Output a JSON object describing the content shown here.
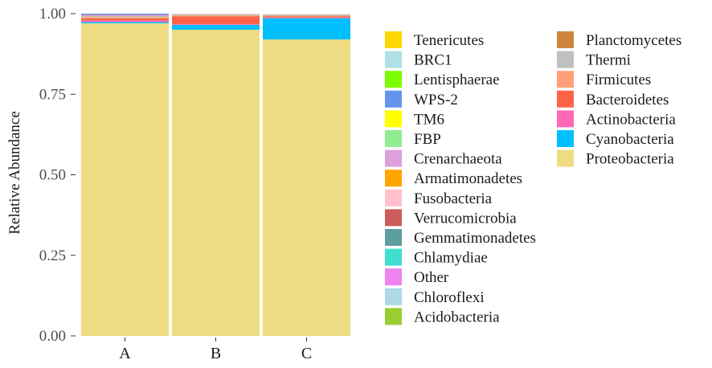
{
  "chart_data": {
    "type": "bar",
    "stacked": true,
    "title": "",
    "xlabel": "",
    "ylabel": "Relative Abundance",
    "ylim": [
      0,
      1
    ],
    "yticks": [
      "0.00",
      "0.25",
      "0.50",
      "0.75",
      "1.00"
    ],
    "ytick_values": [
      0,
      0.25,
      0.5,
      0.75,
      1
    ],
    "grid": false,
    "legend_position": "right",
    "categories": [
      "A",
      "B",
      "C"
    ],
    "series": [
      {
        "name": "Proteobacteria",
        "color": "#EEDC82",
        "values": [
          0.97,
          0.95,
          0.92
        ]
      },
      {
        "name": "Cyanobacteria",
        "color": "#00BFFF",
        "values": [
          0.004,
          0.015,
          0.066
        ]
      },
      {
        "name": "Actinobacteria",
        "color": "#FF69B4",
        "values": [
          0.005,
          0.002,
          0.002
        ]
      },
      {
        "name": "Bacteroidetes",
        "color": "#FF6347",
        "values": [
          0.006,
          0.025,
          0.004
        ]
      },
      {
        "name": "Firmicutes",
        "color": "#FFA07A",
        "values": [
          0.004,
          0.002,
          0.001
        ]
      },
      {
        "name": "Thermi",
        "color": "#C0C0C0",
        "values": [
          0.001,
          0.001,
          0.001
        ]
      },
      {
        "name": "Planctomycetes",
        "color": "#CD853F",
        "values": [
          0.001,
          0.001,
          0.001
        ]
      },
      {
        "name": "Acidobacteria",
        "color": "#9ACD32",
        "values": [
          0.001,
          0.001,
          0.001
        ]
      },
      {
        "name": "Chloroflexi",
        "color": "#ADD8E6",
        "values": [
          0.001,
          0.001,
          0.001
        ]
      },
      {
        "name": "Other",
        "color": "#EE82EE",
        "values": [
          0.002,
          0.001,
          0.001
        ]
      },
      {
        "name": "Chlamydiae",
        "color": "#40E0D0",
        "values": [
          0,
          0,
          0
        ]
      },
      {
        "name": "Gemmatimonadetes",
        "color": "#5F9EA0",
        "values": [
          0.001,
          0,
          0
        ]
      },
      {
        "name": "Verrucomicrobia",
        "color": "#CD5C5C",
        "values": [
          0.001,
          0,
          0
        ]
      },
      {
        "name": "Fusobacteria",
        "color": "#FFC0CB",
        "values": [
          0,
          0,
          0
        ]
      },
      {
        "name": "Armatimonadetes",
        "color": "#FFA500",
        "values": [
          0,
          0,
          0
        ]
      },
      {
        "name": "Crenarchaeota",
        "color": "#DDA0DD",
        "values": [
          0,
          0,
          0
        ]
      },
      {
        "name": "FBP",
        "color": "#90EE90",
        "values": [
          0,
          0,
          0
        ]
      },
      {
        "name": "TM6",
        "color": "#FFFF00",
        "values": [
          0,
          0,
          0
        ]
      },
      {
        "name": "WPS-2",
        "color": "#6495ED",
        "values": [
          0.003,
          0,
          0
        ]
      },
      {
        "name": "Lentisphaerae",
        "color": "#7CFC00",
        "values": [
          0,
          0,
          0
        ]
      },
      {
        "name": "BRC1",
        "color": "#B0E0E6",
        "values": [
          0,
          0,
          0
        ]
      },
      {
        "name": "Tenericutes",
        "color": "#FFD700",
        "values": [
          0,
          0,
          0
        ]
      }
    ],
    "legend": [
      {
        "name": "Tenericutes",
        "color": "#FFD700"
      },
      {
        "name": "BRC1",
        "color": "#B0E0E6"
      },
      {
        "name": "Lentisphaerae",
        "color": "#7CFC00"
      },
      {
        "name": "WPS-2",
        "color": "#6495ED"
      },
      {
        "name": "TM6",
        "color": "#FFFF00"
      },
      {
        "name": "FBP",
        "color": "#90EE90"
      },
      {
        "name": "Crenarchaeota",
        "color": "#DDA0DD"
      },
      {
        "name": "Armatimonadetes",
        "color": "#FFA500"
      },
      {
        "name": "Fusobacteria",
        "color": "#FFC0CB"
      },
      {
        "name": "Verrucomicrobia",
        "color": "#CD5C5C"
      },
      {
        "name": "Gemmatimonadetes",
        "color": "#5F9EA0"
      },
      {
        "name": "Chlamydiae",
        "color": "#40E0D0"
      },
      {
        "name": "Other",
        "color": "#EE82EE"
      },
      {
        "name": "Chloroflexi",
        "color": "#ADD8E6"
      },
      {
        "name": "Acidobacteria",
        "color": "#9ACD32"
      },
      {
        "name": "Planctomycetes",
        "color": "#CD853F"
      },
      {
        "name": "Thermi",
        "color": "#C0C0C0"
      },
      {
        "name": "Firmicutes",
        "color": "#FFA07A"
      },
      {
        "name": "Bacteroidetes",
        "color": "#FF6347"
      },
      {
        "name": "Actinobacteria",
        "color": "#FF69B4"
      },
      {
        "name": "Cyanobacteria",
        "color": "#00BFFF"
      },
      {
        "name": "Proteobacteria",
        "color": "#EEDC82"
      }
    ]
  }
}
